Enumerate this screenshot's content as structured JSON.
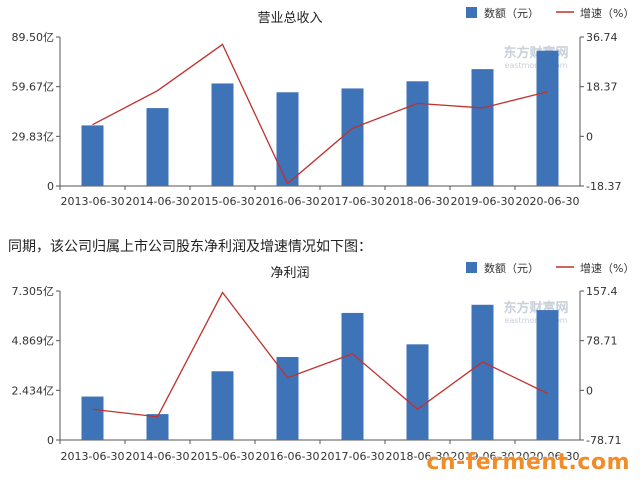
{
  "caption": "同期，该公司归属上市公司股东净利润及增速情况如下图：",
  "watermarks": {
    "chart_logo_cn": "东方财富网",
    "chart_logo_en": "eastmoney.com",
    "footer_site": "cn-ferment.com"
  },
  "colors": {
    "bar": "#3f73b8",
    "line": "#c0312d",
    "axis": "#555555",
    "watermark": "#f28c28"
  },
  "chart_data": [
    {
      "type": "bar",
      "title": "营业总收入",
      "legend": {
        "position": "top-right",
        "bar_label": "数额（元）",
        "line_label": "增速（%）"
      },
      "categories": [
        "2013-06-30",
        "2014-06-30",
        "2015-06-30",
        "2016-06-30",
        "2017-06-30",
        "2018-06-30",
        "2019-06-30",
        "2020-06-30"
      ],
      "series": [
        {
          "name": "数额（元）",
          "type": "bar",
          "axis": "left",
          "values": [
            36.4,
            46.8,
            61.6,
            56.3,
            58.6,
            62.9,
            70.2,
            81.3
          ]
        },
        {
          "name": "增速（%）",
          "type": "line",
          "axis": "right",
          "values": [
            4.3,
            16.9,
            34.0,
            -17.5,
            3.0,
            12.2,
            10.5,
            16.5
          ]
        }
      ],
      "y_left": {
        "min": 0,
        "max": 89.5,
        "ticks": [
          0,
          29.83,
          59.67,
          89.5
        ],
        "tick_labels": [
          "0",
          "29.83亿",
          "59.67亿",
          "89.50亿"
        ]
      },
      "y_right": {
        "min": -18.37,
        "max": 36.74,
        "ticks": [
          -18.37,
          0,
          18.37,
          36.74
        ],
        "tick_labels": [
          "-18.37",
          "0",
          "18.37",
          "36.74"
        ]
      },
      "grid": false
    },
    {
      "type": "bar",
      "title": "净利润",
      "legend": {
        "position": "top-right",
        "bar_label": "数额（元）",
        "line_label": "增速（%）"
      },
      "categories": [
        "2013-06-30",
        "2014-06-30",
        "2015-06-30",
        "2016-06-30",
        "2017-06-30",
        "2018-06-30",
        "2019-06-30",
        "2020-06-30"
      ],
      "series": [
        {
          "name": "数额（元）",
          "type": "bar",
          "axis": "left",
          "values": [
            2.13,
            1.27,
            3.37,
            4.07,
            6.23,
            4.69,
            6.63,
            6.37
          ]
        },
        {
          "name": "增速（%）",
          "type": "line",
          "axis": "right",
          "values": [
            -30.0,
            -42.0,
            155.0,
            20.0,
            58.0,
            -30.0,
            45.0,
            -5.0
          ]
        }
      ],
      "y_left": {
        "min": 0,
        "max": 7.305,
        "ticks": [
          0,
          2.434,
          4.869,
          7.305
        ],
        "tick_labels": [
          "0",
          "2.434亿",
          "4.869亿",
          "7.305亿"
        ]
      },
      "y_right": {
        "min": -78.71,
        "max": 157.4,
        "ticks": [
          -78.71,
          0,
          78.71,
          157.4
        ],
        "tick_labels": [
          "-78.71",
          "0",
          "78.71",
          "157.4"
        ]
      },
      "grid": false
    }
  ]
}
